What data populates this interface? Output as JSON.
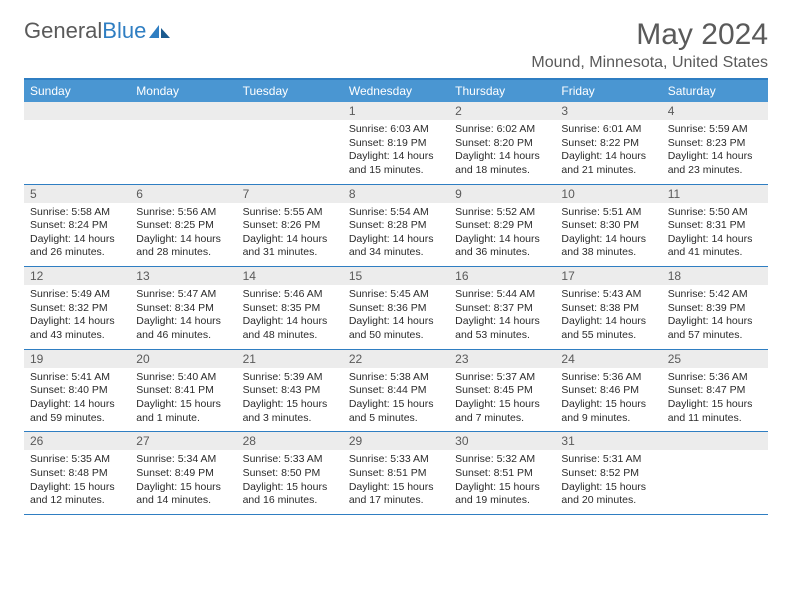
{
  "brand": {
    "text1": "General",
    "text2": "Blue"
  },
  "title": "May 2024",
  "location": "Mound, Minnesota, United States",
  "colors": {
    "header_bg": "#4a96d2",
    "border": "#2f7ec2",
    "daynum_bg": "#ececec",
    "text_gray": "#5a5a5a"
  },
  "dayNames": [
    "Sunday",
    "Monday",
    "Tuesday",
    "Wednesday",
    "Thursday",
    "Friday",
    "Saturday"
  ],
  "weeks": [
    [
      {
        "blank": true
      },
      {
        "blank": true
      },
      {
        "blank": true
      },
      {
        "n": "1",
        "sr": "6:03 AM",
        "ss": "8:19 PM",
        "dl": "14 hours and 15 minutes."
      },
      {
        "n": "2",
        "sr": "6:02 AM",
        "ss": "8:20 PM",
        "dl": "14 hours and 18 minutes."
      },
      {
        "n": "3",
        "sr": "6:01 AM",
        "ss": "8:22 PM",
        "dl": "14 hours and 21 minutes."
      },
      {
        "n": "4",
        "sr": "5:59 AM",
        "ss": "8:23 PM",
        "dl": "14 hours and 23 minutes."
      }
    ],
    [
      {
        "n": "5",
        "sr": "5:58 AM",
        "ss": "8:24 PM",
        "dl": "14 hours and 26 minutes."
      },
      {
        "n": "6",
        "sr": "5:56 AM",
        "ss": "8:25 PM",
        "dl": "14 hours and 28 minutes."
      },
      {
        "n": "7",
        "sr": "5:55 AM",
        "ss": "8:26 PM",
        "dl": "14 hours and 31 minutes."
      },
      {
        "n": "8",
        "sr": "5:54 AM",
        "ss": "8:28 PM",
        "dl": "14 hours and 34 minutes."
      },
      {
        "n": "9",
        "sr": "5:52 AM",
        "ss": "8:29 PM",
        "dl": "14 hours and 36 minutes."
      },
      {
        "n": "10",
        "sr": "5:51 AM",
        "ss": "8:30 PM",
        "dl": "14 hours and 38 minutes."
      },
      {
        "n": "11",
        "sr": "5:50 AM",
        "ss": "8:31 PM",
        "dl": "14 hours and 41 minutes."
      }
    ],
    [
      {
        "n": "12",
        "sr": "5:49 AM",
        "ss": "8:32 PM",
        "dl": "14 hours and 43 minutes."
      },
      {
        "n": "13",
        "sr": "5:47 AM",
        "ss": "8:34 PM",
        "dl": "14 hours and 46 minutes."
      },
      {
        "n": "14",
        "sr": "5:46 AM",
        "ss": "8:35 PM",
        "dl": "14 hours and 48 minutes."
      },
      {
        "n": "15",
        "sr": "5:45 AM",
        "ss": "8:36 PM",
        "dl": "14 hours and 50 minutes."
      },
      {
        "n": "16",
        "sr": "5:44 AM",
        "ss": "8:37 PM",
        "dl": "14 hours and 53 minutes."
      },
      {
        "n": "17",
        "sr": "5:43 AM",
        "ss": "8:38 PM",
        "dl": "14 hours and 55 minutes."
      },
      {
        "n": "18",
        "sr": "5:42 AM",
        "ss": "8:39 PM",
        "dl": "14 hours and 57 minutes."
      }
    ],
    [
      {
        "n": "19",
        "sr": "5:41 AM",
        "ss": "8:40 PM",
        "dl": "14 hours and 59 minutes."
      },
      {
        "n": "20",
        "sr": "5:40 AM",
        "ss": "8:41 PM",
        "dl": "15 hours and 1 minute."
      },
      {
        "n": "21",
        "sr": "5:39 AM",
        "ss": "8:43 PM",
        "dl": "15 hours and 3 minutes."
      },
      {
        "n": "22",
        "sr": "5:38 AM",
        "ss": "8:44 PM",
        "dl": "15 hours and 5 minutes."
      },
      {
        "n": "23",
        "sr": "5:37 AM",
        "ss": "8:45 PM",
        "dl": "15 hours and 7 minutes."
      },
      {
        "n": "24",
        "sr": "5:36 AM",
        "ss": "8:46 PM",
        "dl": "15 hours and 9 minutes."
      },
      {
        "n": "25",
        "sr": "5:36 AM",
        "ss": "8:47 PM",
        "dl": "15 hours and 11 minutes."
      }
    ],
    [
      {
        "n": "26",
        "sr": "5:35 AM",
        "ss": "8:48 PM",
        "dl": "15 hours and 12 minutes."
      },
      {
        "n": "27",
        "sr": "5:34 AM",
        "ss": "8:49 PM",
        "dl": "15 hours and 14 minutes."
      },
      {
        "n": "28",
        "sr": "5:33 AM",
        "ss": "8:50 PM",
        "dl": "15 hours and 16 minutes."
      },
      {
        "n": "29",
        "sr": "5:33 AM",
        "ss": "8:51 PM",
        "dl": "15 hours and 17 minutes."
      },
      {
        "n": "30",
        "sr": "5:32 AM",
        "ss": "8:51 PM",
        "dl": "15 hours and 19 minutes."
      },
      {
        "n": "31",
        "sr": "5:31 AM",
        "ss": "8:52 PM",
        "dl": "15 hours and 20 minutes."
      },
      {
        "blank": true
      }
    ]
  ],
  "labels": {
    "sunrise": "Sunrise:",
    "sunset": "Sunset:",
    "daylight": "Daylight:"
  }
}
